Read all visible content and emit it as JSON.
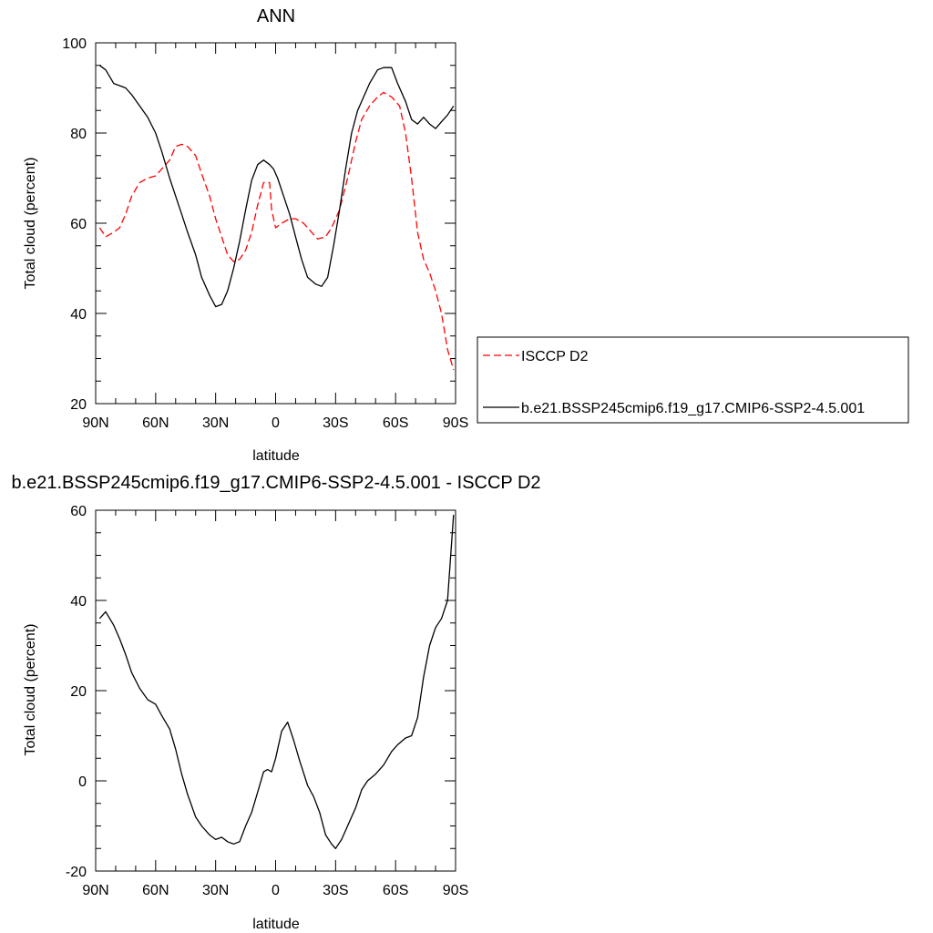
{
  "chart_data": [
    {
      "type": "line",
      "title": "ANN",
      "xlabel": "latitude",
      "ylabel": "Total cloud (percent)",
      "xlim": [
        90,
        -90
      ],
      "ylim": [
        20,
        100
      ],
      "xticks": [
        90,
        60,
        30,
        0,
        -30,
        -60,
        -90
      ],
      "xtick_labels": [
        "90N",
        "60N",
        "30N",
        "0",
        "30S",
        "60S",
        "90S"
      ],
      "yticks": [
        20,
        40,
        60,
        80,
        100
      ],
      "ytick_labels": [
        "20",
        "40",
        "60",
        "80",
        "100"
      ],
      "grid": false,
      "legend_position": "right",
      "series": [
        {
          "name": "ISCCP D2",
          "color": "#ff0000",
          "dash": true,
          "x": [
            88,
            85,
            81,
            78,
            75,
            72,
            68,
            64,
            60,
            57,
            53,
            50,
            47,
            44,
            40,
            37,
            33,
            30,
            27,
            24,
            21,
            18,
            15,
            12,
            9,
            6,
            3,
            2,
            0,
            -3,
            -7,
            -10,
            -14,
            -18,
            -21,
            -25,
            -28,
            -32,
            -36,
            -40,
            -43,
            -47,
            -51,
            -54,
            -58,
            -62,
            -65,
            -68,
            -71,
            -74,
            -77,
            -80,
            -83,
            -86,
            -89
          ],
          "y": [
            59,
            57,
            58,
            59,
            62,
            66,
            69,
            70,
            70.5,
            72,
            74,
            77,
            77.5,
            77,
            75,
            71,
            66,
            61,
            57,
            53,
            51.5,
            52,
            54,
            58,
            64,
            69,
            69,
            63,
            59,
            60,
            61,
            61,
            60,
            58,
            56.5,
            57,
            59,
            63,
            70,
            78,
            83,
            86,
            88,
            89,
            88,
            86,
            80,
            70,
            58,
            52,
            49,
            45,
            40,
            32,
            27.5
          ]
        },
        {
          "name": "b.e21.BSSP245cmip6.f19_g17.CMIP6-SSP2-4.5.001",
          "color": "#000000",
          "dash": false,
          "x": [
            88,
            85,
            81,
            78,
            75,
            72,
            68,
            64,
            60,
            57,
            53,
            50,
            47,
            44,
            40,
            37,
            33,
            30,
            27,
            24,
            21,
            18,
            15,
            12,
            9,
            6,
            3,
            1,
            -1,
            -4,
            -7,
            -10,
            -13,
            -16,
            -20,
            -23,
            -26,
            -29,
            -32,
            -35,
            -38,
            -41,
            -44,
            -47,
            -51,
            -54,
            -58,
            -61,
            -65,
            -68,
            -71,
            -74,
            -77,
            -80,
            -83,
            -86,
            -89
          ],
          "y": [
            95,
            94,
            91,
            90.5,
            90,
            88.5,
            86,
            83.5,
            80,
            76,
            70,
            66,
            62,
            58,
            53,
            48,
            44,
            41.5,
            42,
            45,
            50,
            56,
            63,
            69.5,
            73,
            74,
            73,
            72,
            70,
            66,
            62,
            57,
            52,
            48,
            46.5,
            46,
            48,
            55,
            63,
            72,
            80,
            85,
            88,
            91,
            94,
            94.5,
            94.5,
            91,
            87,
            83,
            82,
            83.5,
            82,
            81,
            82.5,
            84,
            86
          ]
        }
      ]
    },
    {
      "type": "line",
      "title": "b.e21.BSSP245cmip6.f19_g17.CMIP6-SSP2-4.5.001 - ISCCP D2",
      "xlabel": "latitude",
      "ylabel": "Total cloud (percent)",
      "xlim": [
        90,
        -90
      ],
      "ylim": [
        -20,
        60
      ],
      "xticks": [
        90,
        60,
        30,
        0,
        -30,
        -60,
        -90
      ],
      "xtick_labels": [
        "90N",
        "60N",
        "30N",
        "0",
        "30S",
        "60S",
        "90S"
      ],
      "yticks": [
        -20,
        0,
        20,
        40,
        60
      ],
      "ytick_labels": [
        "-20",
        "0",
        "20",
        "40",
        "60"
      ],
      "grid": false,
      "series": [
        {
          "color": "#000000",
          "dash": false,
          "x": [
            88,
            85,
            81,
            78,
            75,
            72,
            68,
            64,
            60,
            57,
            53,
            50,
            47,
            44,
            40,
            37,
            33,
            30,
            27,
            24,
            21,
            18,
            15,
            12,
            9,
            6,
            4,
            2,
            0,
            -3,
            -6,
            -9,
            -12,
            -16,
            -19,
            -22,
            -25,
            -28,
            -30,
            -33,
            -36,
            -40,
            -43,
            -46,
            -50,
            -54,
            -58,
            -61,
            -65,
            -68,
            -71,
            -74,
            -77,
            -80,
            -83,
            -86,
            -89
          ],
          "y": [
            36,
            37.5,
            34.5,
            31.5,
            28,
            24,
            20.5,
            18,
            17,
            14.5,
            11.5,
            7,
            1.5,
            -3,
            -8,
            -10,
            -12,
            -13,
            -12.5,
            -13.5,
            -14,
            -13.5,
            -10,
            -7,
            -2.5,
            2,
            2.5,
            2,
            5,
            11,
            13,
            9,
            4.5,
            -1,
            -3.5,
            -7,
            -12,
            -14,
            -15,
            -13,
            -10,
            -6,
            -2,
            0,
            1.5,
            3.5,
            6.5,
            8,
            9.5,
            10,
            14,
            23,
            30,
            34,
            36,
            40,
            59
          ]
        }
      ]
    }
  ]
}
